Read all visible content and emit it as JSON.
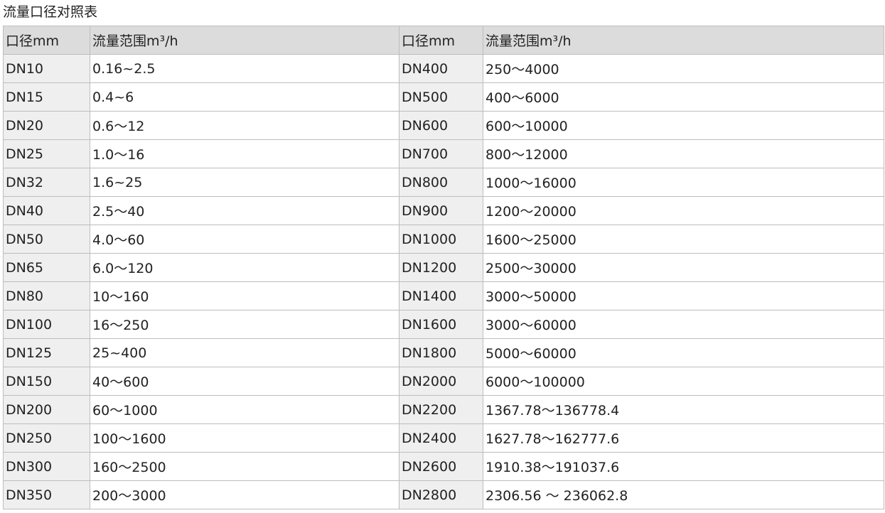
{
  "title": "流量口径对照表",
  "headers": [
    "口径mm",
    "流量范围m³/h",
    "口径mm",
    "流量范围m³/h"
  ],
  "rows": [
    [
      "DN10",
      "0.16~2.5",
      "DN400",
      "250～4000"
    ],
    [
      "DN15",
      "0.4~6",
      "DN500",
      "400～6000"
    ],
    [
      "DN20",
      "0.6～12",
      "DN600",
      "600～10000"
    ],
    [
      "DN25",
      "1.0～16",
      "DN700",
      "800～12000"
    ],
    [
      "DN32",
      "1.6~25",
      "DN800",
      "1000～16000"
    ],
    [
      "DN40",
      "2.5～40",
      "DN900",
      "1200～20000"
    ],
    [
      "DN50",
      "4.0～60",
      "DN1000",
      "1600～25000"
    ],
    [
      "DN65",
      "6.0～120",
      "DN1200",
      "2500～30000"
    ],
    [
      "DN80",
      "10～160",
      "DN1400",
      "3000～50000"
    ],
    [
      "DN100",
      "16～250",
      "DN1600",
      "3000～60000"
    ],
    [
      "DN125",
      "25~400",
      "DN1800",
      "5000～60000"
    ],
    [
      "DN150",
      "40～600",
      "DN2000",
      "6000～100000"
    ],
    [
      "DN200",
      "60～1000",
      "DN2200",
      "1367.78～136778.4"
    ],
    [
      "DN250",
      "100～1600",
      "DN2400",
      "1627.78～162777.6"
    ],
    [
      "DN300",
      "160～2500",
      "DN2600",
      "1910.38～191037.6"
    ],
    [
      "DN350",
      "200～3000",
      "DN2800",
      "2306.56 ～ 236062.8"
    ]
  ]
}
